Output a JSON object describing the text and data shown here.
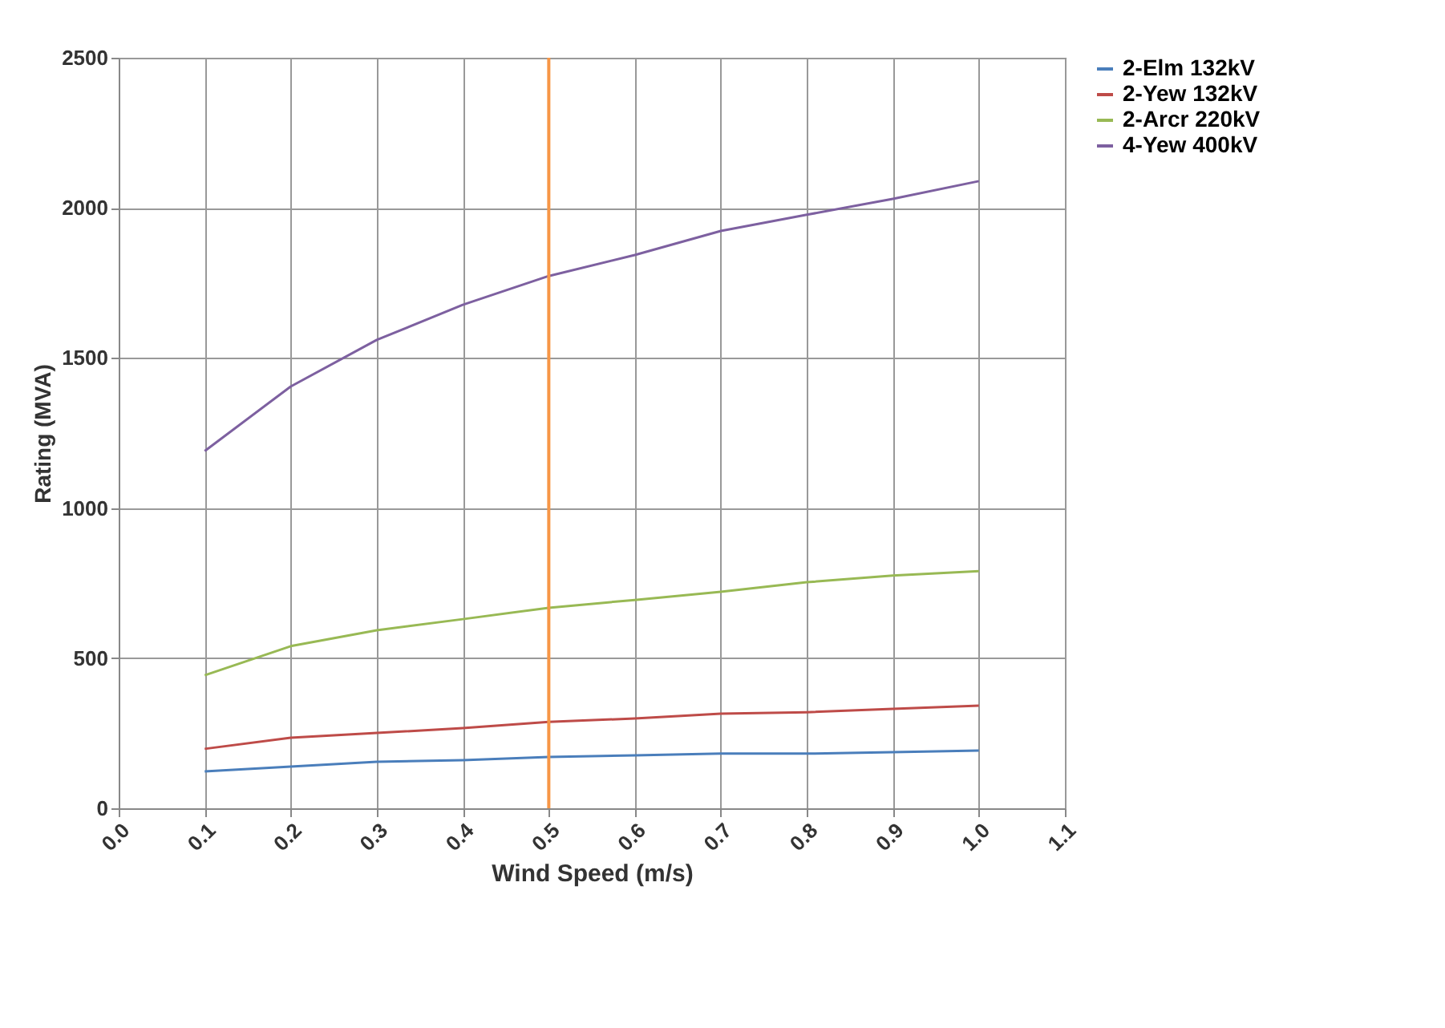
{
  "chart_data": {
    "type": "line",
    "xlabel": "Wind Speed (m/s)",
    "ylabel": "Rating (MVA)",
    "x": [
      0.1,
      0.2,
      0.3,
      0.4,
      0.5,
      0.6,
      0.7,
      0.8,
      0.9,
      1.0
    ],
    "series": [
      {
        "name": "2-Elm 132kV",
        "color": "#4a7ebb",
        "values": [
          123,
          139,
          155,
          160,
          171,
          176,
          182,
          182,
          187,
          192
        ]
      },
      {
        "name": "2-Yew 132kV",
        "color": "#be4b48",
        "values": [
          198,
          235,
          251,
          267,
          288,
          299,
          315,
          320,
          331,
          342
        ]
      },
      {
        "name": "2-Arcr 220kV",
        "color": "#98b954",
        "values": [
          443,
          540,
          593,
          630,
          668,
          694,
          721,
          753,
          775,
          790
        ]
      },
      {
        "name": "4-Yew 400kV",
        "color": "#7d60a0",
        "values": [
          1190,
          1405,
          1560,
          1677,
          1773,
          1843,
          1923,
          1977,
          2030,
          2089
        ]
      }
    ],
    "xlim": [
      0,
      1.1
    ],
    "xticks": [
      {
        "value": 0,
        "label": "0.0"
      },
      0.1,
      0.2,
      0.3,
      0.4,
      0.5,
      0.6,
      0.7,
      0.8,
      0.9,
      {
        "value": 1,
        "label": "1.0"
      },
      1.1
    ],
    "ylim": [
      0,
      2500
    ],
    "yticks": [
      0,
      500,
      1000,
      1500,
      2000,
      2500
    ],
    "ref_lines": [
      {
        "axis": "x",
        "value": 0.5,
        "color": "#f79646"
      }
    ],
    "grid": true,
    "legend": "right",
    "marker": "none",
    "line_style": "solid"
  }
}
